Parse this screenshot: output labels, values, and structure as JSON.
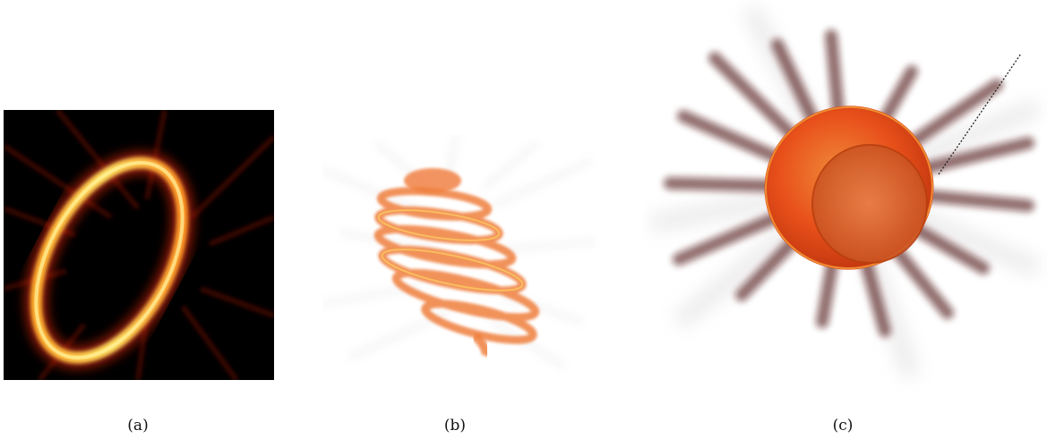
{
  "figure": {
    "panels": [
      {
        "id": "a",
        "caption": "(a)",
        "depiction": "heatmap-slice"
      },
      {
        "id": "b",
        "caption": "(b)",
        "depiction": "helical-volume-render"
      },
      {
        "id": "c",
        "caption": "(c)",
        "depiction": "spherical-volume-render"
      }
    ],
    "colors": {
      "heat_dark": "#000000",
      "heat_mid": "#c0200a",
      "heat_bright": "#ffd040",
      "streak": "#4a1010",
      "orange": "#e8501a"
    }
  }
}
